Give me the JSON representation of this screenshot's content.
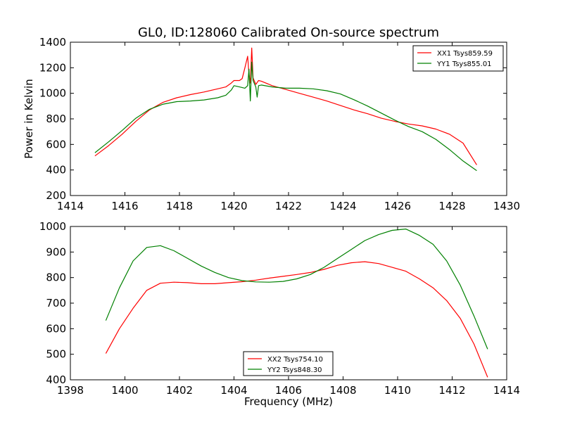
{
  "title": "GL0, ID:128060 Calibrated On-source spectrum",
  "chart_data": [
    {
      "type": "line",
      "title": "GL0, ID:128060 Calibrated On-source spectrum",
      "xlabel": "",
      "ylabel": "Power in Kelvin",
      "xlim": [
        1414,
        1430
      ],
      "ylim": [
        200,
        1400
      ],
      "xticks": [
        1414,
        1416,
        1418,
        1420,
        1422,
        1424,
        1426,
        1428,
        1430
      ],
      "yticks": [
        200,
        400,
        600,
        800,
        1000,
        1200,
        1400
      ],
      "grid": false,
      "legend_position": "top-right",
      "series": [
        {
          "name": "XX1 Tsys859.59",
          "color": "#ff0000",
          "points": [
            [
              1414.9,
              510
            ],
            [
              1415.4,
              590
            ],
            [
              1415.9,
              680
            ],
            [
              1416.4,
              780
            ],
            [
              1416.9,
              870
            ],
            [
              1417.4,
              930
            ],
            [
              1417.9,
              965
            ],
            [
              1418.4,
              990
            ],
            [
              1418.9,
              1010
            ],
            [
              1419.4,
              1035
            ],
            [
              1419.7,
              1050
            ],
            [
              1419.9,
              1080
            ],
            [
              1420.0,
              1100
            ],
            [
              1420.2,
              1100
            ],
            [
              1420.3,
              1115
            ],
            [
              1420.4,
              1200
            ],
            [
              1420.5,
              1290
            ],
            [
              1420.55,
              1150
            ],
            [
              1420.6,
              1080
            ],
            [
              1420.65,
              1355
            ],
            [
              1420.7,
              1120
            ],
            [
              1420.8,
              1070
            ],
            [
              1420.9,
              1100
            ],
            [
              1421.0,
              1095
            ],
            [
              1421.4,
              1060
            ],
            [
              1421.9,
              1030
            ],
            [
              1422.4,
              1000
            ],
            [
              1422.9,
              970
            ],
            [
              1423.4,
              940
            ],
            [
              1423.9,
              905
            ],
            [
              1424.4,
              870
            ],
            [
              1424.9,
              840
            ],
            [
              1425.4,
              805
            ],
            [
              1425.9,
              780
            ],
            [
              1426.4,
              760
            ],
            [
              1426.9,
              745
            ],
            [
              1427.4,
              720
            ],
            [
              1427.9,
              680
            ],
            [
              1428.4,
              610
            ],
            [
              1428.9,
              440
            ]
          ]
        },
        {
          "name": "YY1 Tsys855.01",
          "color": "#008000",
          "points": [
            [
              1414.9,
              535
            ],
            [
              1415.4,
              620
            ],
            [
              1415.9,
              710
            ],
            [
              1416.4,
              805
            ],
            [
              1416.9,
              875
            ],
            [
              1417.4,
              915
            ],
            [
              1417.9,
              935
            ],
            [
              1418.4,
              940
            ],
            [
              1418.9,
              948
            ],
            [
              1419.4,
              965
            ],
            [
              1419.7,
              985
            ],
            [
              1419.9,
              1025
            ],
            [
              1420.0,
              1060
            ],
            [
              1420.2,
              1050
            ],
            [
              1420.4,
              1040
            ],
            [
              1420.5,
              1060
            ],
            [
              1420.55,
              1190
            ],
            [
              1420.6,
              940
            ],
            [
              1420.65,
              1245
            ],
            [
              1420.7,
              1100
            ],
            [
              1420.8,
              1050
            ],
            [
              1420.85,
              970
            ],
            [
              1420.9,
              1060
            ],
            [
              1421.0,
              1065
            ],
            [
              1421.4,
              1050
            ],
            [
              1421.9,
              1040
            ],
            [
              1422.4,
              1040
            ],
            [
              1422.9,
              1035
            ],
            [
              1423.4,
              1020
            ],
            [
              1423.9,
              995
            ],
            [
              1424.4,
              950
            ],
            [
              1424.9,
              900
            ],
            [
              1425.4,
              845
            ],
            [
              1425.9,
              790
            ],
            [
              1426.4,
              740
            ],
            [
              1426.9,
              700
            ],
            [
              1427.4,
              640
            ],
            [
              1427.9,
              560
            ],
            [
              1428.4,
              470
            ],
            [
              1428.9,
              395
            ]
          ]
        }
      ]
    },
    {
      "type": "line",
      "title": "",
      "xlabel": "Frequency (MHz)",
      "ylabel": "",
      "xlim": [
        1398,
        1414
      ],
      "ylim": [
        400,
        1000
      ],
      "xticks": [
        1398,
        1400,
        1402,
        1404,
        1406,
        1408,
        1410,
        1412,
        1414
      ],
      "yticks": [
        400,
        500,
        600,
        700,
        800,
        900,
        1000
      ],
      "grid": false,
      "legend_position": "bottom-center",
      "series": [
        {
          "name": "XX2 Tsys754.10",
          "color": "#ff0000",
          "points": [
            [
              1399.3,
              503
            ],
            [
              1399.8,
              600
            ],
            [
              1400.3,
              680
            ],
            [
              1400.8,
              750
            ],
            [
              1401.3,
              778
            ],
            [
              1401.8,
              782
            ],
            [
              1402.3,
              780
            ],
            [
              1402.8,
              776
            ],
            [
              1403.3,
              776
            ],
            [
              1403.8,
              780
            ],
            [
              1404.3,
              784
            ],
            [
              1404.8,
              790
            ],
            [
              1405.3,
              798
            ],
            [
              1405.8,
              805
            ],
            [
              1406.3,
              812
            ],
            [
              1406.8,
              820
            ],
            [
              1407.3,
              832
            ],
            [
              1407.8,
              848
            ],
            [
              1408.3,
              858
            ],
            [
              1408.8,
              862
            ],
            [
              1409.3,
              855
            ],
            [
              1409.8,
              840
            ],
            [
              1410.3,
              825
            ],
            [
              1410.8,
              795
            ],
            [
              1411.3,
              760
            ],
            [
              1411.8,
              710
            ],
            [
              1412.3,
              640
            ],
            [
              1412.8,
              540
            ],
            [
              1413.3,
              410
            ]
          ]
        },
        {
          "name": "YY2 Tsys848.30",
          "color": "#008000",
          "points": [
            [
              1399.3,
              632
            ],
            [
              1399.8,
              760
            ],
            [
              1400.3,
              865
            ],
            [
              1400.8,
              918
            ],
            [
              1401.3,
              925
            ],
            [
              1401.8,
              905
            ],
            [
              1402.3,
              875
            ],
            [
              1402.8,
              845
            ],
            [
              1403.3,
              820
            ],
            [
              1403.8,
              800
            ],
            [
              1404.3,
              788
            ],
            [
              1404.8,
              783
            ],
            [
              1405.3,
              782
            ],
            [
              1405.8,
              785
            ],
            [
              1406.3,
              795
            ],
            [
              1406.8,
              812
            ],
            [
              1407.3,
              840
            ],
            [
              1407.8,
              875
            ],
            [
              1408.3,
              910
            ],
            [
              1408.8,
              945
            ],
            [
              1409.3,
              968
            ],
            [
              1409.8,
              985
            ],
            [
              1410.3,
              990
            ],
            [
              1410.8,
              965
            ],
            [
              1411.3,
              930
            ],
            [
              1411.8,
              865
            ],
            [
              1412.3,
              770
            ],
            [
              1412.8,
              650
            ],
            [
              1413.3,
              520
            ]
          ]
        }
      ]
    }
  ]
}
